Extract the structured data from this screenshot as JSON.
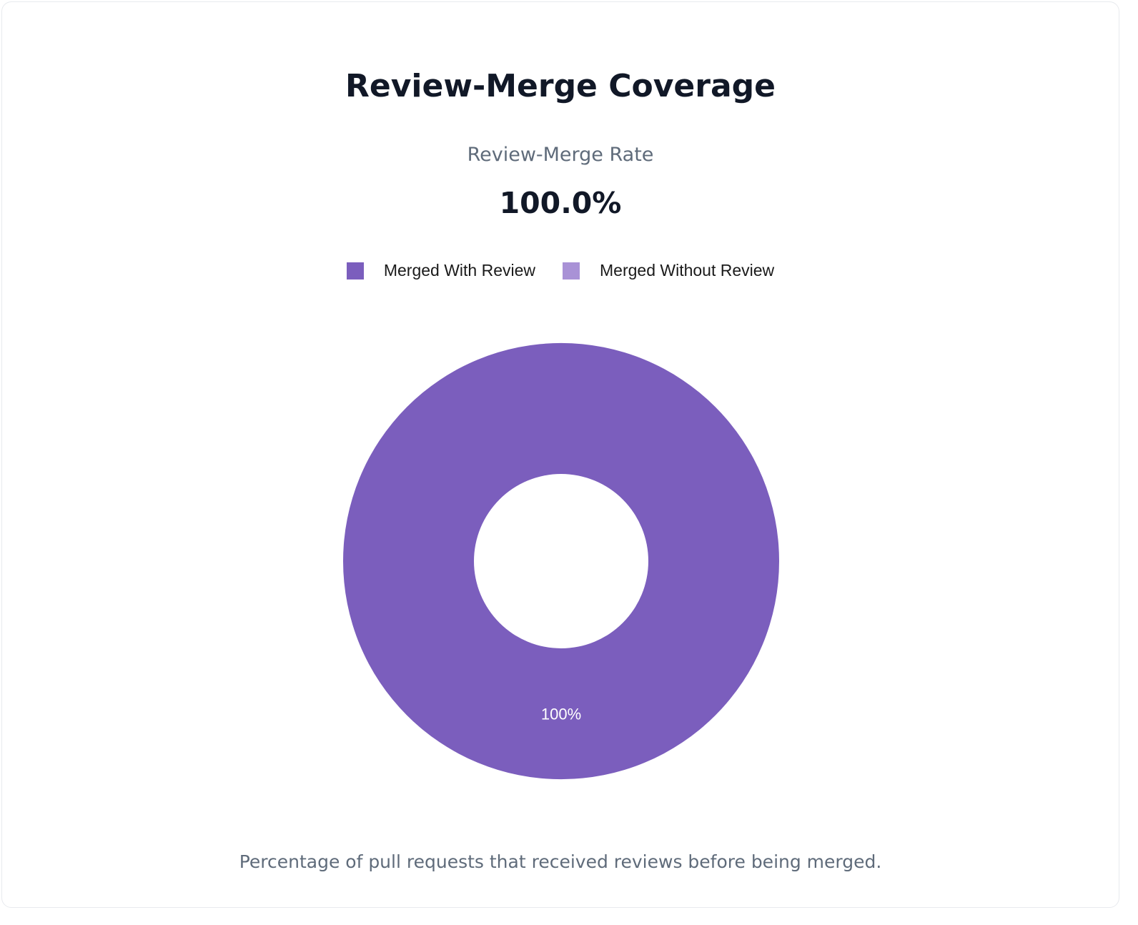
{
  "header": {
    "title": "Review-Merge Coverage"
  },
  "metric": {
    "label": "Review-Merge Rate",
    "value": "100.0%"
  },
  "footnote": "Percentage of pull requests that received reviews before being merged.",
  "chart_data": {
    "type": "pie",
    "donut": true,
    "legend_position": "top",
    "labels": [
      "Merged With Review",
      "Merged Without Review"
    ],
    "values": [
      100,
      0
    ],
    "data_labels": [
      "100%",
      ""
    ],
    "colors": [
      "#7b5ebd",
      "#a992d6"
    ]
  }
}
